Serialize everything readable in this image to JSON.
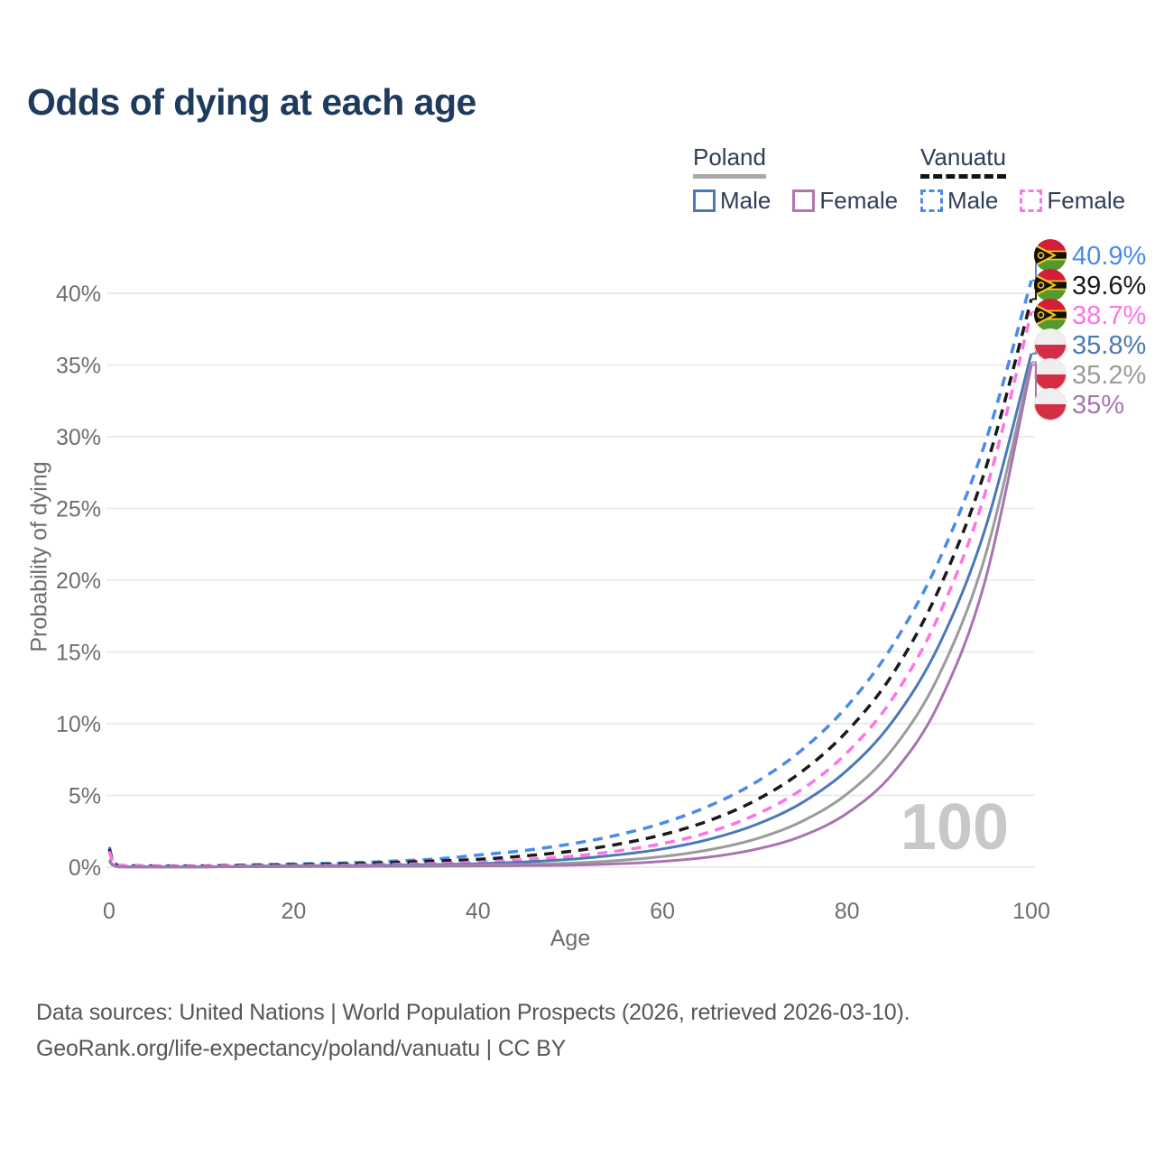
{
  "title": "Odds of dying at each age",
  "legend": {
    "groups": [
      {
        "label": "Poland",
        "underline_style": "solid",
        "underline_color": "#a8a8a8",
        "items": [
          {
            "label": "Male",
            "color": "#4b79b7",
            "dash": false
          },
          {
            "label": "Female",
            "color": "#b077b0",
            "dash": false
          }
        ]
      },
      {
        "label": "Vanuatu",
        "underline_style": "dashed",
        "underline_color": "#141414",
        "items": [
          {
            "label": "Male",
            "color": "#4a8bea",
            "dash": true
          },
          {
            "label": "Female",
            "color": "#ff74e4",
            "dash": true
          }
        ]
      }
    ]
  },
  "chart_data": {
    "type": "line",
    "title": "Odds of dying at each age",
    "xlabel": "Age",
    "ylabel": "Probability of dying",
    "xlim": [
      0,
      100
    ],
    "ylim": [
      0,
      43
    ],
    "grid": "horizontal",
    "legend_position": "top-right",
    "watermark_age_label": "100",
    "xtick_values": [
      0,
      20,
      40,
      60,
      80,
      100
    ],
    "xtick_labels": [
      "0",
      "20",
      "40",
      "60",
      "80",
      "100"
    ],
    "ytick_values": [
      0,
      5,
      10,
      15,
      20,
      25,
      30,
      35,
      40
    ],
    "ytick_labels": [
      "0%",
      "5%",
      "10%",
      "15%",
      "20%",
      "25%",
      "30%",
      "35%",
      "40%"
    ],
    "x_ages": [
      0,
      1,
      5,
      10,
      15,
      20,
      25,
      30,
      35,
      40,
      45,
      50,
      55,
      60,
      65,
      70,
      75,
      80,
      85,
      90,
      95,
      100
    ],
    "series": [
      {
        "id": "vanuatu-male",
        "country": "Vanuatu",
        "sex": "Male",
        "color": "#4a8bea",
        "dash": true,
        "flag": "vanuatu",
        "end_label": "40.9%",
        "end_value": 40.9,
        "values": [
          1.4,
          0.12,
          0.09,
          0.09,
          0.15,
          0.22,
          0.28,
          0.4,
          0.55,
          0.84,
          1.16,
          1.61,
          2.22,
          3.07,
          4.25,
          5.87,
          8.11,
          11.2,
          15.5,
          21.4,
          29.6,
          40.9
        ]
      },
      {
        "id": "vanuatu-combined",
        "country": "Vanuatu",
        "sex": "Both",
        "color": "#1a1a1a",
        "dash": true,
        "flag": "vanuatu",
        "end_label": "39.6%",
        "end_value": 39.6,
        "values": [
          1.25,
          0.11,
          0.08,
          0.08,
          0.12,
          0.17,
          0.22,
          0.3,
          0.42,
          0.54,
          0.78,
          1.1,
          1.58,
          2.26,
          3.23,
          4.62,
          6.61,
          9.46,
          13.5,
          19.4,
          27.7,
          39.6
        ]
      },
      {
        "id": "vanuatu-female",
        "country": "Vanuatu",
        "sex": "Female",
        "color": "#ff74e4",
        "dash": true,
        "flag": "vanuatu",
        "end_label": "38.7%",
        "end_value": 38.7,
        "values": [
          1.1,
          0.1,
          0.07,
          0.06,
          0.08,
          0.11,
          0.13,
          0.18,
          0.25,
          0.34,
          0.52,
          0.75,
          1.12,
          1.64,
          2.43,
          3.62,
          5.37,
          7.97,
          11.8,
          17.6,
          26.1,
          38.7
        ]
      },
      {
        "id": "poland-male",
        "country": "Poland",
        "sex": "Male",
        "color": "#4b79b7",
        "dash": false,
        "flag": "poland",
        "end_label": "35.8%",
        "end_value": 35.8,
        "values": [
          0.5,
          0.03,
          0.02,
          0.02,
          0.06,
          0.1,
          0.11,
          0.13,
          0.18,
          0.24,
          0.36,
          0.55,
          0.85,
          1.27,
          1.93,
          2.93,
          4.44,
          6.74,
          10.2,
          15.5,
          23.6,
          35.8
        ]
      },
      {
        "id": "poland-combined",
        "country": "Poland",
        "sex": "Both",
        "color": "#9b9b9b",
        "dash": false,
        "flag": "poland",
        "end_label": "35.2%",
        "end_value": 35.2,
        "values": [
          0.45,
          0.025,
          0.02,
          0.02,
          0.05,
          0.07,
          0.08,
          0.09,
          0.12,
          0.15,
          0.19,
          0.28,
          0.46,
          0.74,
          1.2,
          1.94,
          3.15,
          5.1,
          8.26,
          13.4,
          21.7,
          35.2
        ]
      },
      {
        "id": "poland-female",
        "country": "Poland",
        "sex": "Female",
        "color": "#a874b0",
        "dash": false,
        "flag": "poland",
        "end_label": "35%",
        "end_value": 35.0,
        "values": [
          0.4,
          0.02,
          0.015,
          0.015,
          0.03,
          0.04,
          0.05,
          0.06,
          0.07,
          0.09,
          0.11,
          0.14,
          0.23,
          0.4,
          0.7,
          1.23,
          2.14,
          3.75,
          6.55,
          11.45,
          20.0,
          35.0
        ]
      }
    ],
    "flag_colors": {
      "poland_white": "#efefef",
      "poland_red": "#d42e44",
      "vanuatu_red": "#d21e38",
      "vanuatu_green": "#55982f",
      "vanuatu_yellow": "#f6c913",
      "vanuatu_black": "#101010"
    },
    "style": {
      "grid_color": "#ececec",
      "tick_color": "#6e6e6e",
      "watermark_color": "#c8c8c8"
    }
  },
  "footer": {
    "line1": "Data sources: United Nations | World Population Prospects (2026, retrieved 2026-03-10).",
    "line2": "GeoRank.org/life-expectancy/poland/vanuatu | CC BY"
  }
}
